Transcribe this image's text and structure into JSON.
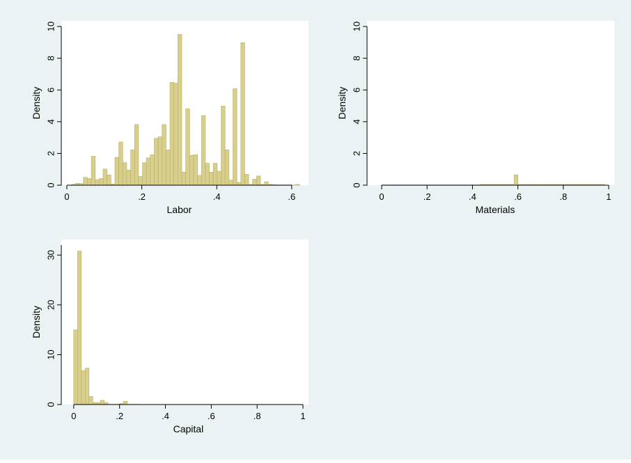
{
  "colors": {
    "outer_background": "#eaf2f3",
    "plot_background": "#ffffff",
    "bar_fill": "#d8cf8c",
    "bar_stroke": "#b9ae68",
    "axis": "#000000"
  },
  "chart_data": [
    {
      "type": "bar",
      "subtype": "histogram",
      "xlabel": "Labor",
      "ylabel": "Density",
      "xlim": [
        0,
        0.63
      ],
      "ylim": [
        0,
        10
      ],
      "xticks": [
        0,
        0.2,
        0.4,
        0.6
      ],
      "xtick_labels": [
        "0",
        ".2",
        ".4",
        ".6"
      ],
      "yticks": [
        0,
        2,
        4,
        6,
        8,
        10
      ],
      "ytick_labels": [
        "0",
        "2",
        "4",
        "6",
        "8",
        "10"
      ],
      "grid": false,
      "bin_width": 0.0105,
      "x": [
        0.0179,
        0.0284,
        0.0389,
        0.0494,
        0.0599,
        0.0704,
        0.0809,
        0.0914,
        0.1019,
        0.1124,
        0.1229,
        0.1334,
        0.1439,
        0.1544,
        0.1649,
        0.1754,
        0.1859,
        0.1964,
        0.2069,
        0.2174,
        0.2279,
        0.2384,
        0.2489,
        0.2594,
        0.2699,
        0.2804,
        0.2909,
        0.3014,
        0.3119,
        0.3224,
        0.3329,
        0.3434,
        0.3539,
        0.3644,
        0.3749,
        0.3854,
        0.3959,
        0.4064,
        0.4169,
        0.4274,
        0.4379,
        0.4484,
        0.4589,
        0.4694,
        0.4799,
        0.4904,
        0.5009,
        0.5114,
        0.5219,
        0.5324,
        0.5429,
        0.5534,
        0.5639,
        0.5744,
        0.5849,
        0.5954,
        0.6059,
        0.6164
      ],
      "values": [
        0.05,
        0.12,
        0.1,
        0.5,
        0.42,
        1.82,
        0.35,
        0.42,
        1.02,
        0.65,
        0.08,
        1.75,
        2.72,
        1.42,
        0.95,
        2.22,
        3.82,
        0.55,
        1.42,
        1.72,
        1.92,
        2.95,
        3.05,
        3.82,
        2.22,
        6.48,
        6.42,
        9.5,
        0.82,
        4.82,
        1.88,
        1.92,
        0.62,
        4.38,
        1.38,
        0.82,
        1.38,
        0.88,
        4.98,
        2.22,
        0.32,
        6.08,
        0.18,
        8.98,
        0.68,
        0.05,
        0.38,
        0.58,
        0.05,
        0.22,
        0.05,
        0.03,
        0.02,
        0.02,
        0.02,
        0.02,
        0.02,
        0.05
      ]
    },
    {
      "type": "bar",
      "subtype": "histogram",
      "xlabel": "Materials",
      "ylabel": "Density",
      "xlim": [
        -0.04,
        1.0
      ],
      "ylim": [
        0,
        10
      ],
      "xticks": [
        0,
        0.2,
        0.4,
        0.6,
        0.8,
        1.0
      ],
      "xtick_labels": [
        "0",
        ".2",
        ".4",
        ".6",
        ".8",
        "1"
      ],
      "yticks": [
        0,
        2,
        4,
        6,
        8,
        10
      ],
      "ytick_labels": [
        "0",
        "2",
        "4",
        "6",
        "8",
        "10"
      ],
      "grid": false,
      "bin_width": 0.0167,
      "x": [
        0.0083,
        0.025,
        0.0417,
        0.0583,
        0.075,
        0.0917,
        0.1083,
        0.125,
        0.1417,
        0.1583,
        0.175,
        0.1917,
        0.2083,
        0.225,
        0.2417,
        0.2583,
        0.275,
        0.2917,
        0.3083,
        0.325,
        0.3417,
        0.3583,
        0.375,
        0.3917,
        0.4083,
        0.425,
        0.4417,
        0.4583,
        0.475,
        0.4917,
        0.5083,
        0.525,
        0.5417,
        0.5583,
        0.575,
        0.5917,
        0.6083,
        0.625,
        0.6417,
        0.6583,
        0.675,
        0.6917,
        0.7083,
        0.725,
        0.7417,
        0.7583,
        0.775,
        0.7917,
        0.8083,
        0.825,
        0.8417,
        0.8583,
        0.875,
        0.8917,
        0.9083,
        0.925,
        0.9417,
        0.9583,
        0.975
      ],
      "values": [
        0.02,
        0.02,
        0.02,
        0.02,
        0.02,
        0.02,
        0.02,
        0.02,
        0.02,
        0.02,
        0.02,
        0.02,
        0.02,
        0.02,
        0.02,
        0.02,
        0.02,
        0.02,
        0.02,
        0.02,
        0.02,
        0.02,
        0.02,
        0.02,
        0.02,
        0.02,
        0.05,
        0.05,
        0.05,
        0.05,
        0.05,
        0.05,
        0.05,
        0.05,
        0.05,
        0.65,
        0.05,
        0.05,
        0.05,
        0.05,
        0.05,
        0.05,
        0.05,
        0.05,
        0.05,
        0.05,
        0.05,
        0.05,
        0.05,
        0.05,
        0.05,
        0.05,
        0.05,
        0.05,
        0.05,
        0.05,
        0.05,
        0.05,
        0.05
      ]
    },
    {
      "type": "bar",
      "subtype": "histogram",
      "xlabel": "Capital",
      "ylabel": "Density",
      "xlim": [
        -0.03,
        1.0
      ],
      "ylim": [
        0,
        32
      ],
      "xticks": [
        0,
        0.2,
        0.4,
        0.6,
        0.8,
        1.0
      ],
      "xtick_labels": [
        "0",
        ".2",
        ".4",
        ".6",
        ".8",
        "1"
      ],
      "yticks": [
        0,
        10,
        20,
        30
      ],
      "ytick_labels": [
        "0",
        "10",
        "20",
        "30"
      ],
      "grid": false,
      "bin_width": 0.0167,
      "x": [
        0.0083,
        0.025,
        0.0417,
        0.0583,
        0.075,
        0.0917,
        0.1083,
        0.125,
        0.1417,
        0.1583,
        0.175,
        0.1917,
        0.2083,
        0.225,
        0.2417,
        0.2583,
        0.275,
        0.2917
      ],
      "values": [
        15.0,
        30.8,
        6.8,
        7.3,
        1.6,
        0.4,
        0.4,
        0.85,
        0.4,
        0.05,
        0.05,
        0.05,
        0.2,
        0.65,
        0.05,
        0.05,
        0.05,
        0.02
      ]
    }
  ]
}
